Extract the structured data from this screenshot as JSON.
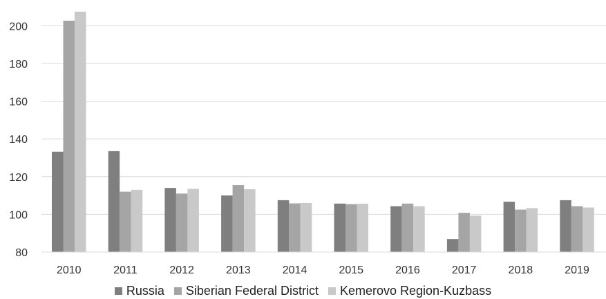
{
  "chart_data": {
    "type": "bar",
    "title": "",
    "xlabel": "",
    "ylabel": "",
    "categories": [
      "2010",
      "2011",
      "2012",
      "2013",
      "2014",
      "2015",
      "2016",
      "2017",
      "2018",
      "2019"
    ],
    "series": [
      {
        "name": "Russia",
        "color": "#7f7f7f",
        "values": [
          133.2,
          133.5,
          114.0,
          110.0,
          107.5,
          105.7,
          104.3,
          86.9,
          106.7,
          107.5
        ]
      },
      {
        "name": "Siberian Federal District",
        "color": "#a5a5a5",
        "values": [
          202.7,
          112.0,
          111.0,
          115.5,
          105.8,
          105.4,
          105.7,
          100.8,
          102.5,
          104.3
        ]
      },
      {
        "name": "Kemerovo Region-Kuzbass",
        "color": "#c9c9c9",
        "values": [
          207.5,
          113.0,
          113.5,
          113.3,
          106.0,
          105.6,
          104.3,
          99.3,
          103.3,
          103.6
        ]
      }
    ],
    "ylim": [
      80,
      210
    ],
    "yticks": [
      80,
      100,
      120,
      140,
      160,
      180,
      200
    ],
    "grid": true,
    "legend_position": "bottom"
  }
}
